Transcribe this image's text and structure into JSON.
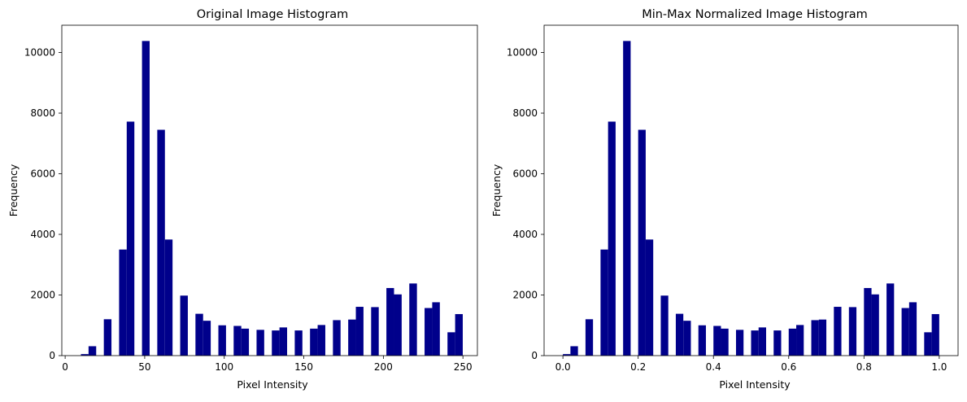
{
  "chart_data": [
    {
      "type": "bar",
      "title": "Original Image Histogram",
      "xlabel": "Pixel Intensity",
      "ylabel": "Frequency",
      "xlim": [
        -2.1,
        259.1
      ],
      "ylim": [
        0,
        10900
      ],
      "xticks": [
        0,
        50,
        100,
        150,
        200,
        250
      ],
      "xtick_labels": [
        "0",
        "50",
        "100",
        "150",
        "200",
        "250"
      ],
      "yticks": [
        0,
        2000,
        4000,
        6000,
        8000,
        10000
      ],
      "ytick_labels": [
        "0",
        "2000",
        "4000",
        "6000",
        "8000",
        "10000"
      ],
      "bar_color": "#00008b",
      "bin_width": 4.8,
      "bins": [
        {
          "x": 9.9,
          "value": 50
        },
        {
          "x": 14.7,
          "value": 310
        },
        {
          "x": 24.3,
          "value": 1200
        },
        {
          "x": 33.9,
          "value": 3500
        },
        {
          "x": 38.7,
          "value": 7720
        },
        {
          "x": 48.3,
          "value": 10380
        },
        {
          "x": 57.9,
          "value": 7450
        },
        {
          "x": 62.7,
          "value": 3830
        },
        {
          "x": 72.3,
          "value": 1980
        },
        {
          "x": 81.9,
          "value": 1380
        },
        {
          "x": 86.7,
          "value": 1150
        },
        {
          "x": 96.3,
          "value": 1000
        },
        {
          "x": 105.9,
          "value": 980
        },
        {
          "x": 110.7,
          "value": 890
        },
        {
          "x": 120.3,
          "value": 850
        },
        {
          "x": 129.9,
          "value": 830
        },
        {
          "x": 134.7,
          "value": 930
        },
        {
          "x": 144.3,
          "value": 830
        },
        {
          "x": 153.9,
          "value": 890
        },
        {
          "x": 158.7,
          "value": 1010
        },
        {
          "x": 168.3,
          "value": 1170
        },
        {
          "x": 177.9,
          "value": 1190
        },
        {
          "x": 182.7,
          "value": 1610
        },
        {
          "x": 192.3,
          "value": 1600
        },
        {
          "x": 201.9,
          "value": 2230
        },
        {
          "x": 206.7,
          "value": 2020
        },
        {
          "x": 216.3,
          "value": 2380
        },
        {
          "x": 225.9,
          "value": 1570
        },
        {
          "x": 230.7,
          "value": 1760
        },
        {
          "x": 240.3,
          "value": 770
        },
        {
          "x": 245.1,
          "value": 1370
        }
      ]
    },
    {
      "type": "bar",
      "title": "Min-Max Normalized Image Histogram",
      "xlabel": "Pixel Intensity",
      "ylabel": "Frequency",
      "xlim": [
        -0.05,
        1.05
      ],
      "ylim": [
        0,
        10900
      ],
      "xticks": [
        0.0,
        0.2,
        0.4,
        0.6,
        0.8,
        1.0
      ],
      "xtick_labels": [
        "0.0",
        "0.2",
        "0.4",
        "0.6",
        "0.8",
        "1.0"
      ],
      "yticks": [
        0,
        2000,
        4000,
        6000,
        8000,
        10000
      ],
      "ytick_labels": [
        "0",
        "2000",
        "4000",
        "6000",
        "8000",
        "10000"
      ],
      "bar_color": "#00008b",
      "bin_width": 0.02,
      "bins": [
        {
          "x": 0.0,
          "value": 50
        },
        {
          "x": 0.02,
          "value": 310
        },
        {
          "x": 0.06,
          "value": 1200
        },
        {
          "x": 0.1,
          "value": 3500
        },
        {
          "x": 0.12,
          "value": 7720
        },
        {
          "x": 0.16,
          "value": 10380
        },
        {
          "x": 0.2,
          "value": 7450
        },
        {
          "x": 0.22,
          "value": 3830
        },
        {
          "x": 0.26,
          "value": 1980
        },
        {
          "x": 0.3,
          "value": 1380
        },
        {
          "x": 0.32,
          "value": 1150
        },
        {
          "x": 0.36,
          "value": 1000
        },
        {
          "x": 0.4,
          "value": 980
        },
        {
          "x": 0.42,
          "value": 890
        },
        {
          "x": 0.46,
          "value": 850
        },
        {
          "x": 0.5,
          "value": 830
        },
        {
          "x": 0.52,
          "value": 930
        },
        {
          "x": 0.56,
          "value": 830
        },
        {
          "x": 0.6,
          "value": 890
        },
        {
          "x": 0.62,
          "value": 1010
        },
        {
          "x": 0.66,
          "value": 1170
        },
        {
          "x": 0.68,
          "value": 1190
        },
        {
          "x": 0.72,
          "value": 1610
        },
        {
          "x": 0.76,
          "value": 1600
        },
        {
          "x": 0.8,
          "value": 2230
        },
        {
          "x": 0.82,
          "value": 2020
        },
        {
          "x": 0.86,
          "value": 2380
        },
        {
          "x": 0.9,
          "value": 1570
        },
        {
          "x": 0.92,
          "value": 1760
        },
        {
          "x": 0.96,
          "value": 770
        },
        {
          "x": 0.98,
          "value": 1370
        }
      ]
    }
  ]
}
